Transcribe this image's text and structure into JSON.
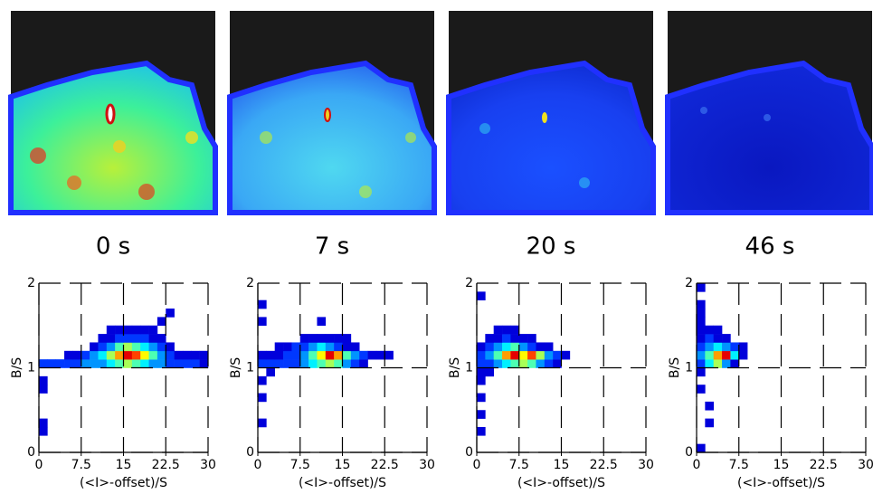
{
  "chart_data": [
    {
      "type": "heatmap",
      "title": "0 s",
      "xlabel": "(<I>-offset)/S",
      "ylabel": "B/S",
      "xlim": [
        0,
        30
      ],
      "xticks": [
        0,
        7.5,
        15,
        22.5,
        30
      ],
      "ylim": [
        0,
        2
      ],
      "yticks": [
        0,
        1,
        2
      ],
      "grid": true,
      "bin_size": [
        1.5,
        0.1
      ],
      "x": [
        0,
        1.5,
        3,
        4.5,
        6,
        7.5,
        9,
        10.5,
        12,
        13.5,
        15,
        16.5,
        18,
        19.5,
        21,
        22.5,
        24,
        25.5,
        27,
        28.5,
        4.5,
        6,
        7.5,
        9,
        10.5,
        12,
        13.5,
        15,
        16.5,
        18,
        19.5,
        21,
        22.5,
        24,
        25.5,
        27,
        28.5,
        9,
        10.5,
        12,
        13.5,
        15,
        16.5,
        18,
        19.5,
        21,
        22.5,
        10.5,
        12,
        13.5,
        15,
        16.5,
        18,
        19.5,
        21,
        12,
        13.5,
        15,
        16.5,
        18,
        19.5,
        0,
        0,
        0,
        0,
        22.5,
        21
      ],
      "y": [
        1,
        1,
        1,
        1,
        1,
        1,
        1,
        1,
        1,
        1,
        1,
        1,
        1,
        1,
        1,
        1,
        1,
        1,
        1,
        1,
        1.1,
        1.1,
        1.1,
        1.1,
        1.1,
        1.1,
        1.1,
        1.1,
        1.1,
        1.1,
        1.1,
        1.1,
        1.1,
        1.1,
        1.1,
        1.1,
        1.1,
        1.2,
        1.2,
        1.2,
        1.2,
        1.2,
        1.2,
        1.2,
        1.2,
        1.2,
        1.2,
        1.3,
        1.3,
        1.3,
        1.3,
        1.3,
        1.3,
        1.3,
        1.3,
        1.4,
        1.4,
        1.4,
        1.4,
        1.4,
        1.4,
        0.8,
        0.7,
        0.3,
        0.2,
        1.6,
        1.5
      ],
      "values": [
        2,
        2,
        2,
        2,
        2,
        3,
        3,
        3,
        4,
        5,
        6,
        5,
        4,
        3,
        3,
        2,
        2,
        2,
        2,
        1,
        1,
        1,
        2,
        3,
        4,
        6,
        8,
        10,
        9,
        7,
        5,
        3,
        2,
        1,
        1,
        1,
        1,
        1,
        2,
        3,
        5,
        6,
        5,
        4,
        3,
        2,
        1,
        1,
        1,
        2,
        2,
        2,
        2,
        1,
        1,
        1,
        1,
        1,
        1,
        1,
        1,
        1,
        1,
        1,
        1,
        1,
        1
      ]
    },
    {
      "type": "heatmap",
      "title": "7 s",
      "xlabel": "(<I>-offset)/S",
      "ylabel": "B/S",
      "xlim": [
        0,
        30
      ],
      "xticks": [
        0,
        7.5,
        15,
        22.5,
        30
      ],
      "ylim": [
        0,
        2
      ],
      "yticks": [
        0,
        1,
        2
      ],
      "grid": true,
      "bin_size": [
        1.5,
        0.1
      ],
      "x": [
        0,
        1.5,
        3,
        4.5,
        6,
        7.5,
        9,
        10.5,
        12,
        13.5,
        15,
        16.5,
        18,
        0,
        1.5,
        3,
        4.5,
        6,
        7.5,
        9,
        10.5,
        12,
        13.5,
        15,
        16.5,
        18,
        19.5,
        21,
        22.5,
        3,
        4.5,
        6,
        7.5,
        9,
        10.5,
        12,
        13.5,
        15,
        16.5,
        7.5,
        9,
        10.5,
        12,
        13.5,
        15,
        0,
        0,
        10.5,
        0,
        0,
        0,
        1.5
      ],
      "y": [
        1,
        1,
        1,
        1,
        1,
        1,
        1,
        1,
        1,
        1,
        1,
        1,
        1,
        1.1,
        1.1,
        1.1,
        1.1,
        1.1,
        1.1,
        1.1,
        1.1,
        1.1,
        1.1,
        1.1,
        1.1,
        1.1,
        1.1,
        1.1,
        1.1,
        1.2,
        1.2,
        1.2,
        1.2,
        1.2,
        1.2,
        1.2,
        1.2,
        1.2,
        1.2,
        1.3,
        1.3,
        1.3,
        1.3,
        1.3,
        1.3,
        1.7,
        1.5,
        1.5,
        0.8,
        0.6,
        0.3,
        0.9
      ],
      "values": [
        2,
        2,
        2,
        2,
        2,
        3,
        4,
        5,
        6,
        5,
        3,
        2,
        1,
        1,
        1,
        1,
        2,
        2,
        3,
        5,
        7,
        10,
        8,
        5,
        3,
        2,
        1,
        1,
        1,
        1,
        1,
        2,
        2,
        3,
        4,
        3,
        2,
        1,
        1,
        1,
        1,
        1,
        1,
        1,
        1,
        1,
        1,
        1,
        1,
        1,
        1,
        1
      ]
    },
    {
      "type": "heatmap",
      "title": "20 s",
      "xlabel": "(<I>-offset)/S",
      "ylabel": "B/S",
      "xlim": [
        0,
        30
      ],
      "xticks": [
        0,
        7.5,
        15,
        22.5,
        30
      ],
      "ylim": [
        0,
        2
      ],
      "yticks": [
        0,
        1,
        2
      ],
      "grid": true,
      "bin_size": [
        1.5,
        0.1
      ],
      "x": [
        0,
        1.5,
        3,
        4.5,
        6,
        7.5,
        9,
        10.5,
        12,
        13.5,
        0,
        1.5,
        3,
        4.5,
        6,
        7.5,
        9,
        10.5,
        12,
        13.5,
        15,
        0,
        1.5,
        3,
        4.5,
        6,
        7.5,
        9,
        10.5,
        12,
        1.5,
        3,
        4.5,
        6,
        7.5,
        9,
        3,
        4.5,
        6,
        0,
        0,
        0,
        0,
        0,
        0,
        1.5
      ],
      "y": [
        1,
        1,
        1,
        1,
        1,
        1,
        1,
        1,
        1,
        1,
        1.1,
        1.1,
        1.1,
        1.1,
        1.1,
        1.1,
        1.1,
        1.1,
        1.1,
        1.1,
        1.1,
        1.2,
        1.2,
        1.2,
        1.2,
        1.2,
        1.2,
        1.2,
        1.2,
        1.2,
        1.3,
        1.3,
        1.3,
        1.3,
        1.3,
        1.3,
        1.4,
        1.4,
        1.4,
        1.8,
        0.9,
        0.8,
        0.6,
        0.4,
        0.2,
        0.9
      ],
      "values": [
        2,
        2,
        3,
        4,
        5,
        6,
        5,
        3,
        2,
        1,
        2,
        3,
        5,
        8,
        10,
        7,
        9,
        6,
        3,
        2,
        1,
        1,
        2,
        3,
        4,
        5,
        3,
        2,
        1,
        1,
        1,
        1,
        2,
        1,
        1,
        1,
        1,
        1,
        1,
        1,
        1,
        1,
        1,
        1,
        1,
        1
      ]
    },
    {
      "type": "heatmap",
      "title": "46 s",
      "xlabel": "(<I>-offset)/S",
      "ylabel": "B/S",
      "xlim": [
        0,
        30
      ],
      "xticks": [
        0,
        7.5,
        15,
        22.5,
        30
      ],
      "ylim": [
        0,
        2
      ],
      "yticks": [
        0,
        1,
        2
      ],
      "grid": true,
      "bin_size": [
        1.5,
        0.1
      ],
      "x": [
        0,
        1.5,
        3,
        4.5,
        6,
        0,
        1.5,
        3,
        4.5,
        6,
        7.5,
        0,
        1.5,
        3,
        4.5,
        6,
        7.5,
        0,
        1.5,
        3,
        4.5,
        0,
        1.5,
        3,
        0,
        0,
        0,
        0,
        0,
        0,
        1.5,
        1.5,
        0
      ],
      "y": [
        1,
        1,
        1,
        1,
        1,
        1.1,
        1.1,
        1.1,
        1.1,
        1.1,
        1.1,
        1.2,
        1.2,
        1.2,
        1.2,
        1.2,
        1.2,
        1.3,
        1.3,
        1.3,
        1.3,
        1.4,
        1.4,
        1.4,
        1.9,
        1.7,
        1.6,
        1.5,
        0.9,
        0.7,
        0.5,
        0.3,
        0
      ],
      "values": [
        2,
        4,
        6,
        3,
        1,
        3,
        5,
        8,
        10,
        4,
        1,
        2,
        3,
        4,
        3,
        2,
        1,
        1,
        2,
        1,
        1,
        1,
        1,
        1,
        1,
        1,
        1,
        1,
        1,
        1,
        1,
        1,
        1
      ]
    }
  ]
}
